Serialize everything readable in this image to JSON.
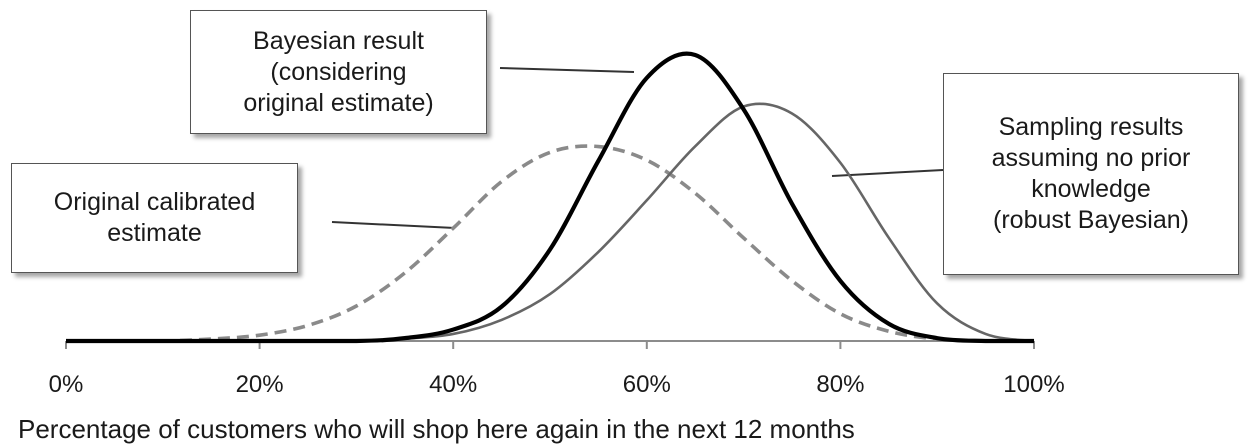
{
  "chart_data": {
    "type": "line",
    "xlabel": "Percentage of customers who will shop here again in the next 12 months",
    "xlim": [
      0,
      1
    ],
    "ylim": [
      0,
      1
    ],
    "x_ticks": [
      "0%",
      "20%",
      "40%",
      "60%",
      "80%",
      "100%"
    ],
    "x_tick_values": [
      0,
      0.2,
      0.4,
      0.6,
      0.8,
      1.0
    ],
    "grid": false,
    "series": [
      {
        "key": "original",
        "style": "dashed",
        "color": "#8a8a8a",
        "x": [
          0.0,
          0.05,
          0.1,
          0.15,
          0.2,
          0.25,
          0.3,
          0.35,
          0.4,
          0.45,
          0.5,
          0.55,
          0.6,
          0.65,
          0.7,
          0.75,
          0.8,
          0.85,
          0.9,
          0.95,
          1.0
        ],
        "y": [
          0.0,
          0.0,
          0.0,
          0.01,
          0.03,
          0.08,
          0.18,
          0.35,
          0.58,
          0.82,
          0.97,
          1.0,
          0.93,
          0.76,
          0.53,
          0.31,
          0.14,
          0.05,
          0.01,
          0.0,
          0.0
        ]
      },
      {
        "key": "bayesian",
        "style": "solid-bold",
        "color": "#000000",
        "x": [
          0.0,
          0.2,
          0.3,
          0.35,
          0.4,
          0.45,
          0.5,
          0.55,
          0.6,
          0.65,
          0.7,
          0.75,
          0.8,
          0.85,
          0.9,
          0.95,
          1.0
        ],
        "y": [
          0.0,
          0.0,
          0.0,
          0.01,
          0.04,
          0.12,
          0.32,
          0.63,
          0.92,
          1.0,
          0.81,
          0.48,
          0.21,
          0.06,
          0.01,
          0.0,
          0.0
        ]
      },
      {
        "key": "sampling",
        "style": "solid",
        "color": "#666666",
        "x": [
          0.0,
          0.2,
          0.3,
          0.35,
          0.4,
          0.45,
          0.5,
          0.55,
          0.6,
          0.65,
          0.7,
          0.75,
          0.8,
          0.85,
          0.9,
          0.95,
          1.0
        ],
        "y": [
          0.0,
          0.0,
          0.0,
          0.01,
          0.03,
          0.09,
          0.2,
          0.38,
          0.6,
          0.83,
          1.0,
          0.97,
          0.76,
          0.44,
          0.16,
          0.03,
          0.0
        ]
      }
    ],
    "peak_heights": {
      "bayesian": 1.0,
      "sampling": 0.82,
      "original": 0.68
    },
    "annotations": [
      {
        "key": "bayesian",
        "lines": [
          "Bayesian result",
          "(considering",
          "original estimate)"
        ],
        "target": "bayesian"
      },
      {
        "key": "original",
        "lines": [
          "Original calibrated",
          "estimate"
        ],
        "target": "original"
      },
      {
        "key": "sampling",
        "lines": [
          "Sampling results",
          "assuming no prior",
          "knowledge",
          "(robust Bayesian)"
        ],
        "target": "sampling"
      }
    ]
  }
}
